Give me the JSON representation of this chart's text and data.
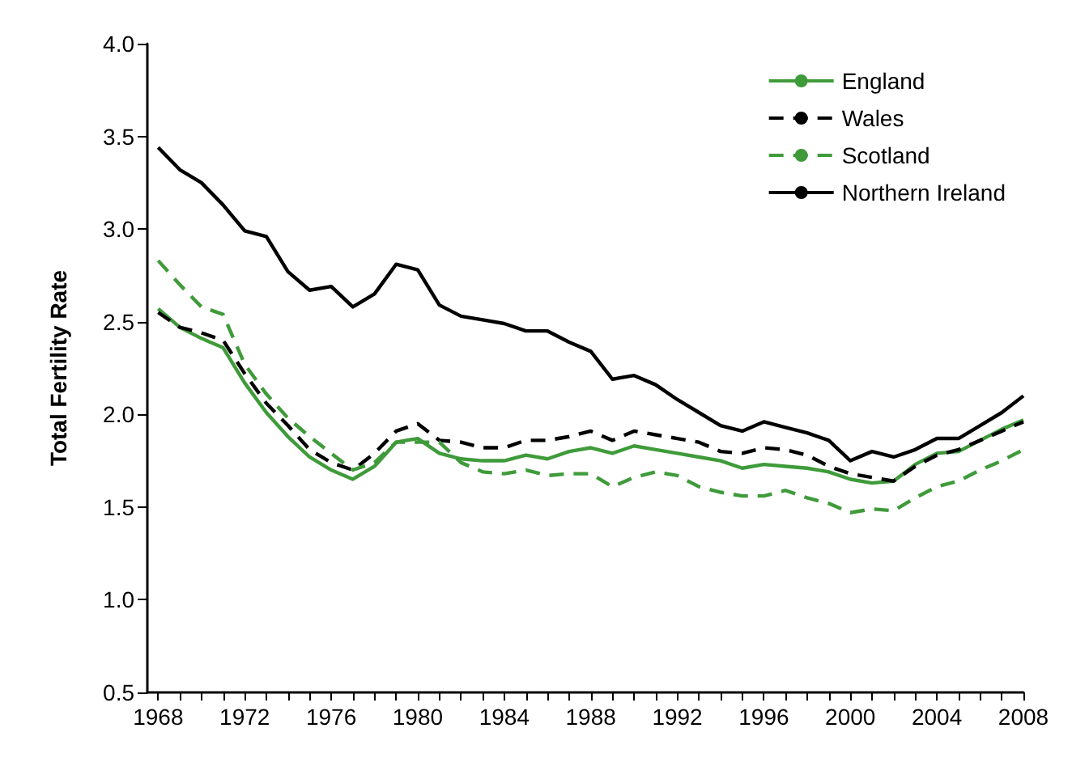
{
  "chart_data": {
    "type": "line",
    "ylabel": "Total Fertility Rate",
    "x": [
      1968,
      1969,
      1970,
      1971,
      1972,
      1973,
      1974,
      1975,
      1976,
      1977,
      1978,
      1979,
      1980,
      1981,
      1982,
      1983,
      1984,
      1985,
      1986,
      1987,
      1988,
      1989,
      1990,
      1991,
      1992,
      1993,
      1994,
      1995,
      1996,
      1997,
      1998,
      1999,
      2000,
      2001,
      2002,
      2003,
      2004,
      2005,
      2006,
      2007,
      2008
    ],
    "series": [
      {
        "name": "England",
        "color": "#3f9b3a",
        "line_style": "solid",
        "values": [
          2.57,
          2.47,
          2.41,
          2.36,
          2.17,
          2.01,
          1.88,
          1.77,
          1.7,
          1.65,
          1.72,
          1.85,
          1.87,
          1.79,
          1.76,
          1.75,
          1.75,
          1.78,
          1.76,
          1.8,
          1.82,
          1.79,
          1.83,
          1.81,
          1.79,
          1.77,
          1.75,
          1.71,
          1.73,
          1.72,
          1.71,
          1.69,
          1.65,
          1.63,
          1.64,
          1.73,
          1.79,
          1.8,
          1.86,
          1.92,
          1.97
        ]
      },
      {
        "name": "Wales",
        "color": "#000000",
        "line_style": "dashed",
        "values": [
          2.55,
          2.47,
          2.44,
          2.4,
          2.22,
          2.06,
          1.94,
          1.81,
          1.74,
          1.7,
          1.79,
          1.91,
          1.95,
          1.86,
          1.85,
          1.82,
          1.82,
          1.86,
          1.86,
          1.88,
          1.91,
          1.86,
          1.91,
          1.89,
          1.87,
          1.85,
          1.8,
          1.79,
          1.82,
          1.81,
          1.78,
          1.72,
          1.68,
          1.66,
          1.64,
          1.72,
          1.78,
          1.81,
          1.86,
          1.91,
          1.96
        ]
      },
      {
        "name": "Scotland",
        "color": "#3f9b3a",
        "line_style": "dashed",
        "values": [
          2.83,
          2.7,
          2.58,
          2.54,
          2.27,
          2.11,
          1.98,
          1.88,
          1.79,
          1.7,
          1.74,
          1.85,
          1.85,
          1.85,
          1.74,
          1.69,
          1.68,
          1.7,
          1.67,
          1.68,
          1.68,
          1.61,
          1.66,
          1.69,
          1.67,
          1.61,
          1.58,
          1.56,
          1.56,
          1.59,
          1.55,
          1.52,
          1.47,
          1.49,
          1.48,
          1.55,
          1.61,
          1.64,
          1.7,
          1.75,
          1.81
        ]
      },
      {
        "name": "Northern Ireland",
        "color": "#000000",
        "line_style": "solid",
        "values": [
          3.44,
          3.32,
          3.25,
          3.13,
          2.99,
          2.96,
          2.77,
          2.67,
          2.69,
          2.58,
          2.65,
          2.81,
          2.78,
          2.59,
          2.53,
          2.51,
          2.49,
          2.45,
          2.45,
          2.39,
          2.34,
          2.19,
          2.21,
          2.16,
          2.08,
          2.01,
          1.94,
          1.91,
          1.96,
          1.93,
          1.9,
          1.86,
          1.75,
          1.8,
          1.77,
          1.81,
          1.87,
          1.87,
          1.94,
          2.01,
          2.1
        ]
      }
    ],
    "xlim": [
      1967.5,
      2008
    ],
    "xticks": [
      1968,
      {
        "value": 1969,
        "label": null
      },
      {
        "value": 1970,
        "label": null
      },
      {
        "value": 1971,
        "label": null
      },
      1972,
      {
        "value": 1973,
        "label": null
      },
      {
        "value": 1974,
        "label": null
      },
      {
        "value": 1975,
        "label": null
      },
      1976,
      {
        "value": 1977,
        "label": null
      },
      {
        "value": 1978,
        "label": null
      },
      {
        "value": 1979,
        "label": null
      },
      1980,
      {
        "value": 1981,
        "label": null
      },
      {
        "value": 1982,
        "label": null
      },
      {
        "value": 1983,
        "label": null
      },
      1984,
      {
        "value": 1985,
        "label": null
      },
      {
        "value": 1986,
        "label": null
      },
      {
        "value": 1987,
        "label": null
      },
      1988,
      {
        "value": 1989,
        "label": null
      },
      {
        "value": 1990,
        "label": null
      },
      {
        "value": 1991,
        "label": null
      },
      1992,
      {
        "value": 1993,
        "label": null
      },
      {
        "value": 1994,
        "label": null
      },
      {
        "value": 1995,
        "label": null
      },
      1996,
      {
        "value": 1997,
        "label": null
      },
      {
        "value": 1998,
        "label": null
      },
      {
        "value": 1999,
        "label": null
      },
      2000,
      {
        "value": 2001,
        "label": null
      },
      {
        "value": 2002,
        "label": null
      },
      {
        "value": 2003,
        "label": null
      },
      2004,
      {
        "value": 2005,
        "label": null
      },
      {
        "value": 2006,
        "label": null
      },
      {
        "value": 2007,
        "label": null
      },
      2008
    ],
    "ylim": [
      0.5,
      4.0
    ],
    "yticks": [
      {
        "value": 0.5,
        "label": "0.5"
      },
      {
        "value": 1.0,
        "label": "1.0"
      },
      1.5,
      {
        "value": 2.0,
        "label": "2.0"
      },
      2.5,
      {
        "value": 3.0,
        "label": "3.0"
      },
      3.5,
      {
        "value": 4.0,
        "label": "4.0"
      }
    ],
    "grid": false,
    "legend": "top right",
    "marker": "none"
  }
}
